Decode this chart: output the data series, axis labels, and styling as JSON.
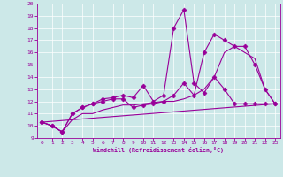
{
  "xlabel": "Windchill (Refroidissement éolien,°C)",
  "xlim": [
    -0.5,
    23.5
  ],
  "ylim": [
    9,
    20
  ],
  "xticks": [
    0,
    1,
    2,
    3,
    4,
    5,
    6,
    7,
    8,
    9,
    10,
    11,
    12,
    13,
    14,
    15,
    16,
    17,
    18,
    19,
    20,
    21,
    22,
    23
  ],
  "yticks": [
    9,
    10,
    11,
    12,
    13,
    14,
    15,
    16,
    17,
    18,
    19,
    20
  ],
  "bg_color": "#cce8e8",
  "line_color": "#990099",
  "series": [
    {
      "x": [
        0,
        1,
        2,
        3,
        4,
        5,
        6,
        7,
        8,
        9,
        10,
        11,
        12,
        13,
        14,
        15,
        16,
        17,
        18,
        19,
        20,
        21,
        22,
        23
      ],
      "y": [
        10.3,
        10.0,
        9.5,
        11.0,
        11.5,
        11.8,
        12.2,
        12.3,
        12.5,
        12.3,
        13.3,
        12.0,
        12.5,
        18.0,
        19.5,
        13.5,
        12.7,
        14.0,
        13.0,
        11.8,
        11.8,
        11.8,
        11.8,
        11.8
      ],
      "marker": "D",
      "markersize": 2.5,
      "linestyle": "-",
      "linewidth": 0.8
    },
    {
      "x": [
        0,
        1,
        2,
        3,
        4,
        5,
        6,
        7,
        8,
        9,
        10,
        11,
        12,
        13,
        14,
        15,
        16,
        17,
        18,
        19,
        20,
        21,
        22,
        23
      ],
      "y": [
        10.3,
        10.0,
        9.5,
        11.0,
        11.5,
        11.8,
        12.0,
        12.2,
        12.2,
        11.5,
        11.7,
        11.8,
        12.0,
        12.5,
        13.5,
        12.5,
        16.0,
        17.5,
        17.0,
        16.5,
        16.5,
        15.0,
        13.0,
        11.8
      ],
      "marker": "D",
      "markersize": 2.5,
      "linestyle": "-",
      "linewidth": 0.8
    },
    {
      "x": [
        0,
        1,
        2,
        3,
        4,
        5,
        6,
        7,
        8,
        9,
        10,
        11,
        12,
        13,
        14,
        15,
        16,
        17,
        18,
        19,
        20,
        21,
        22,
        23
      ],
      "y": [
        10.3,
        10.0,
        9.5,
        10.5,
        11.0,
        11.0,
        11.3,
        11.5,
        11.7,
        11.7,
        11.8,
        11.9,
        12.0,
        12.0,
        12.2,
        12.5,
        13.0,
        14.0,
        16.0,
        16.5,
        16.0,
        15.5,
        13.0,
        11.8
      ],
      "marker": null,
      "markersize": 0,
      "linestyle": "-",
      "linewidth": 0.8
    },
    {
      "x": [
        0,
        23
      ],
      "y": [
        10.3,
        11.8
      ],
      "marker": null,
      "markersize": 0,
      "linestyle": "-",
      "linewidth": 0.8
    }
  ]
}
